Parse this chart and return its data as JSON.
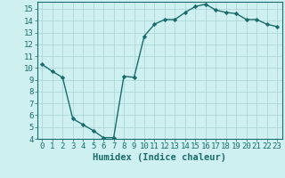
{
  "x": [
    0,
    1,
    2,
    3,
    4,
    5,
    6,
    7,
    8,
    9,
    10,
    11,
    12,
    13,
    14,
    15,
    16,
    17,
    18,
    19,
    20,
    21,
    22,
    23
  ],
  "y": [
    10.3,
    9.7,
    9.2,
    5.7,
    5.2,
    4.7,
    4.1,
    4.1,
    9.3,
    9.2,
    12.7,
    13.7,
    14.1,
    14.1,
    14.7,
    15.2,
    15.4,
    14.9,
    14.7,
    14.6,
    14.1,
    14.1,
    13.7,
    13.5
  ],
  "line_color": "#1a6b6b",
  "marker": "D",
  "marker_size": 2.2,
  "bg_color": "#cff0f0",
  "grid_color": "#aed8d8",
  "xlim": [
    -0.5,
    23.5
  ],
  "ylim": [
    4,
    15.6
  ],
  "yticks": [
    4,
    5,
    6,
    7,
    8,
    9,
    10,
    11,
    12,
    13,
    14,
    15
  ],
  "xticks": [
    0,
    1,
    2,
    3,
    4,
    5,
    6,
    7,
    8,
    9,
    10,
    11,
    12,
    13,
    14,
    15,
    16,
    17,
    18,
    19,
    20,
    21,
    22,
    23
  ],
  "xlabel": "Humidex (Indice chaleur)",
  "xlabel_fontsize": 7.5,
  "tick_fontsize": 6.5,
  "axis_color": "#1a6b6b",
  "linewidth": 1.0
}
